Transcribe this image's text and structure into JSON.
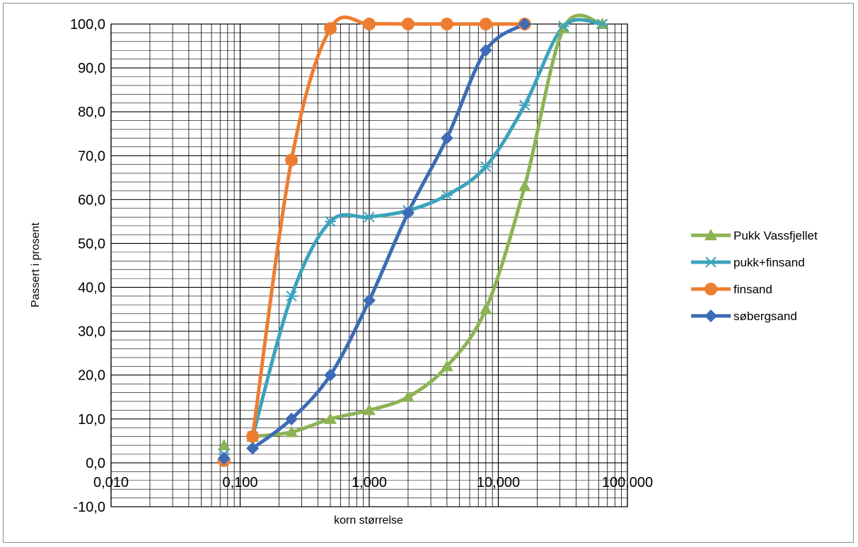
{
  "chart_data": {
    "type": "line",
    "xscale": "log",
    "xlabel": "korn størrelse",
    "ylabel": "Passert i prosent",
    "xlim": [
      0.01,
      100
    ],
    "ylim": [
      -10,
      100
    ],
    "x_tick_values": [
      0.01,
      0.1,
      1,
      10,
      100
    ],
    "x_tick_labels": [
      "0,010",
      "0,100",
      "1,000",
      "10,000",
      "100,000"
    ],
    "y_tick_values": [
      -10,
      0,
      10,
      20,
      30,
      40,
      50,
      60,
      70,
      80,
      90,
      100
    ],
    "y_tick_labels": [
      "-10,0",
      "0,0",
      "10,0",
      "20,0",
      "30,0",
      "40,0",
      "50,0",
      "60,0",
      "70,0",
      "80,0",
      "90,0",
      "100,0"
    ],
    "grid": true,
    "legend_position": "right",
    "series": [
      {
        "name": "Pukk Vassfjellet",
        "color": "#8db354",
        "marker": "triangle",
        "points": [
          [
            0.075,
            4
          ],
          [
            0.125,
            6
          ],
          [
            0.25,
            7
          ],
          [
            0.5,
            10
          ],
          [
            1,
            12
          ],
          [
            2,
            15
          ],
          [
            4,
            22
          ],
          [
            8,
            35
          ],
          [
            16,
            63
          ],
          [
            32,
            99
          ],
          [
            64,
            100
          ]
        ]
      },
      {
        "name": "pukk+finsand",
        "color": "#3ca3bc",
        "marker": "x",
        "points": [
          [
            0.075,
            2
          ],
          [
            0.125,
            6
          ],
          [
            0.25,
            38
          ],
          [
            0.5,
            55
          ],
          [
            1,
            56
          ],
          [
            2,
            57.5
          ],
          [
            4,
            61
          ],
          [
            8,
            67.5
          ],
          [
            16,
            81.5
          ],
          [
            32,
            99.5
          ],
          [
            64,
            100
          ]
        ]
      },
      {
        "name": "finsand",
        "color": "#ed7d31",
        "marker": "circle",
        "points": [
          [
            0.075,
            0.5
          ],
          [
            0.125,
            6
          ],
          [
            0.25,
            69
          ],
          [
            0.5,
            99
          ],
          [
            1,
            100
          ],
          [
            2,
            100
          ],
          [
            4,
            100
          ],
          [
            8,
            100
          ],
          [
            16,
            100
          ]
        ]
      },
      {
        "name": "søbergsand",
        "color": "#3d6bb5",
        "marker": "diamond",
        "points": [
          [
            0.075,
            1
          ],
          [
            0.125,
            3.3
          ],
          [
            0.25,
            10
          ],
          [
            0.5,
            20
          ],
          [
            1,
            37
          ],
          [
            2,
            57
          ],
          [
            4,
            74
          ],
          [
            8,
            94
          ],
          [
            16,
            100
          ]
        ]
      }
    ]
  }
}
